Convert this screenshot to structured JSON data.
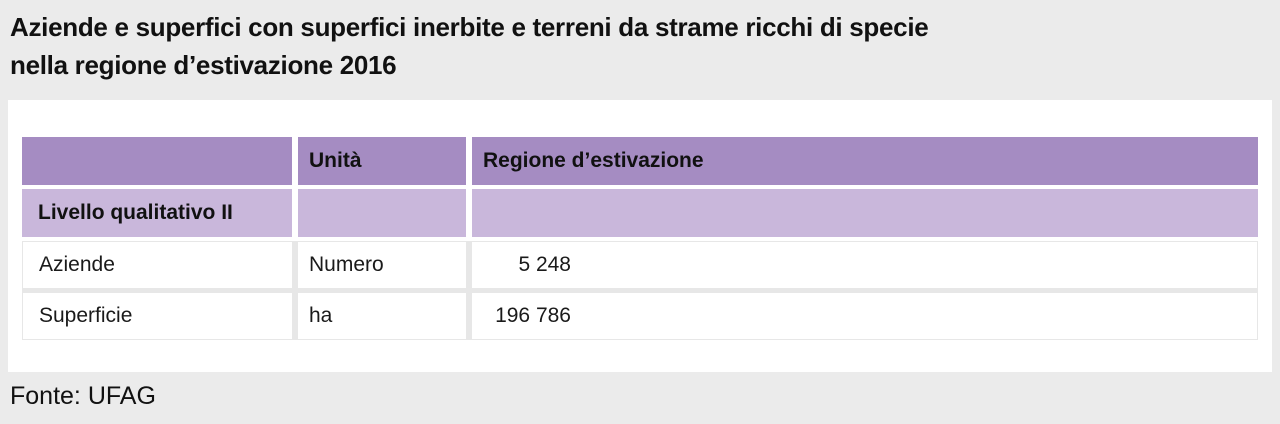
{
  "title": {
    "line1": "Aziende e superfici con superfici inerbite e terreni da strame ricchi di specie",
    "line2": "nella regione d’estivazione 2016"
  },
  "source": "Fonte: UFAG",
  "colors": {
    "page_background": "#ebebeb",
    "panel_background": "#ffffff",
    "header_bg": "#a58cc2",
    "subheader_bg": "#c9b7db",
    "row_separator": "#e7e7e7",
    "text": "#111111"
  },
  "table": {
    "columns": {
      "col1": "",
      "col2": "Unità",
      "col3": "Regione d’estivazione"
    },
    "section_label": "Livello qualitativo II",
    "rows": [
      {
        "label": "Aziende",
        "unit": "Numero",
        "value": "5 248"
      },
      {
        "label": "Superficie",
        "unit": "ha",
        "value": "196 786"
      }
    ]
  },
  "chart_data": {
    "type": "table",
    "title": "Aziende e superfici con superfici inerbite e terreni da strame ricchi di specie nella regione d’estivazione 2016",
    "columns": [
      "",
      "Unità",
      "Regione d’estivazione"
    ],
    "section": "Livello qualitativo II",
    "rows": [
      [
        "Aziende",
        "Numero",
        5248
      ],
      [
        "Superficie",
        "ha",
        196786
      ]
    ],
    "source": "Fonte: UFAG"
  }
}
